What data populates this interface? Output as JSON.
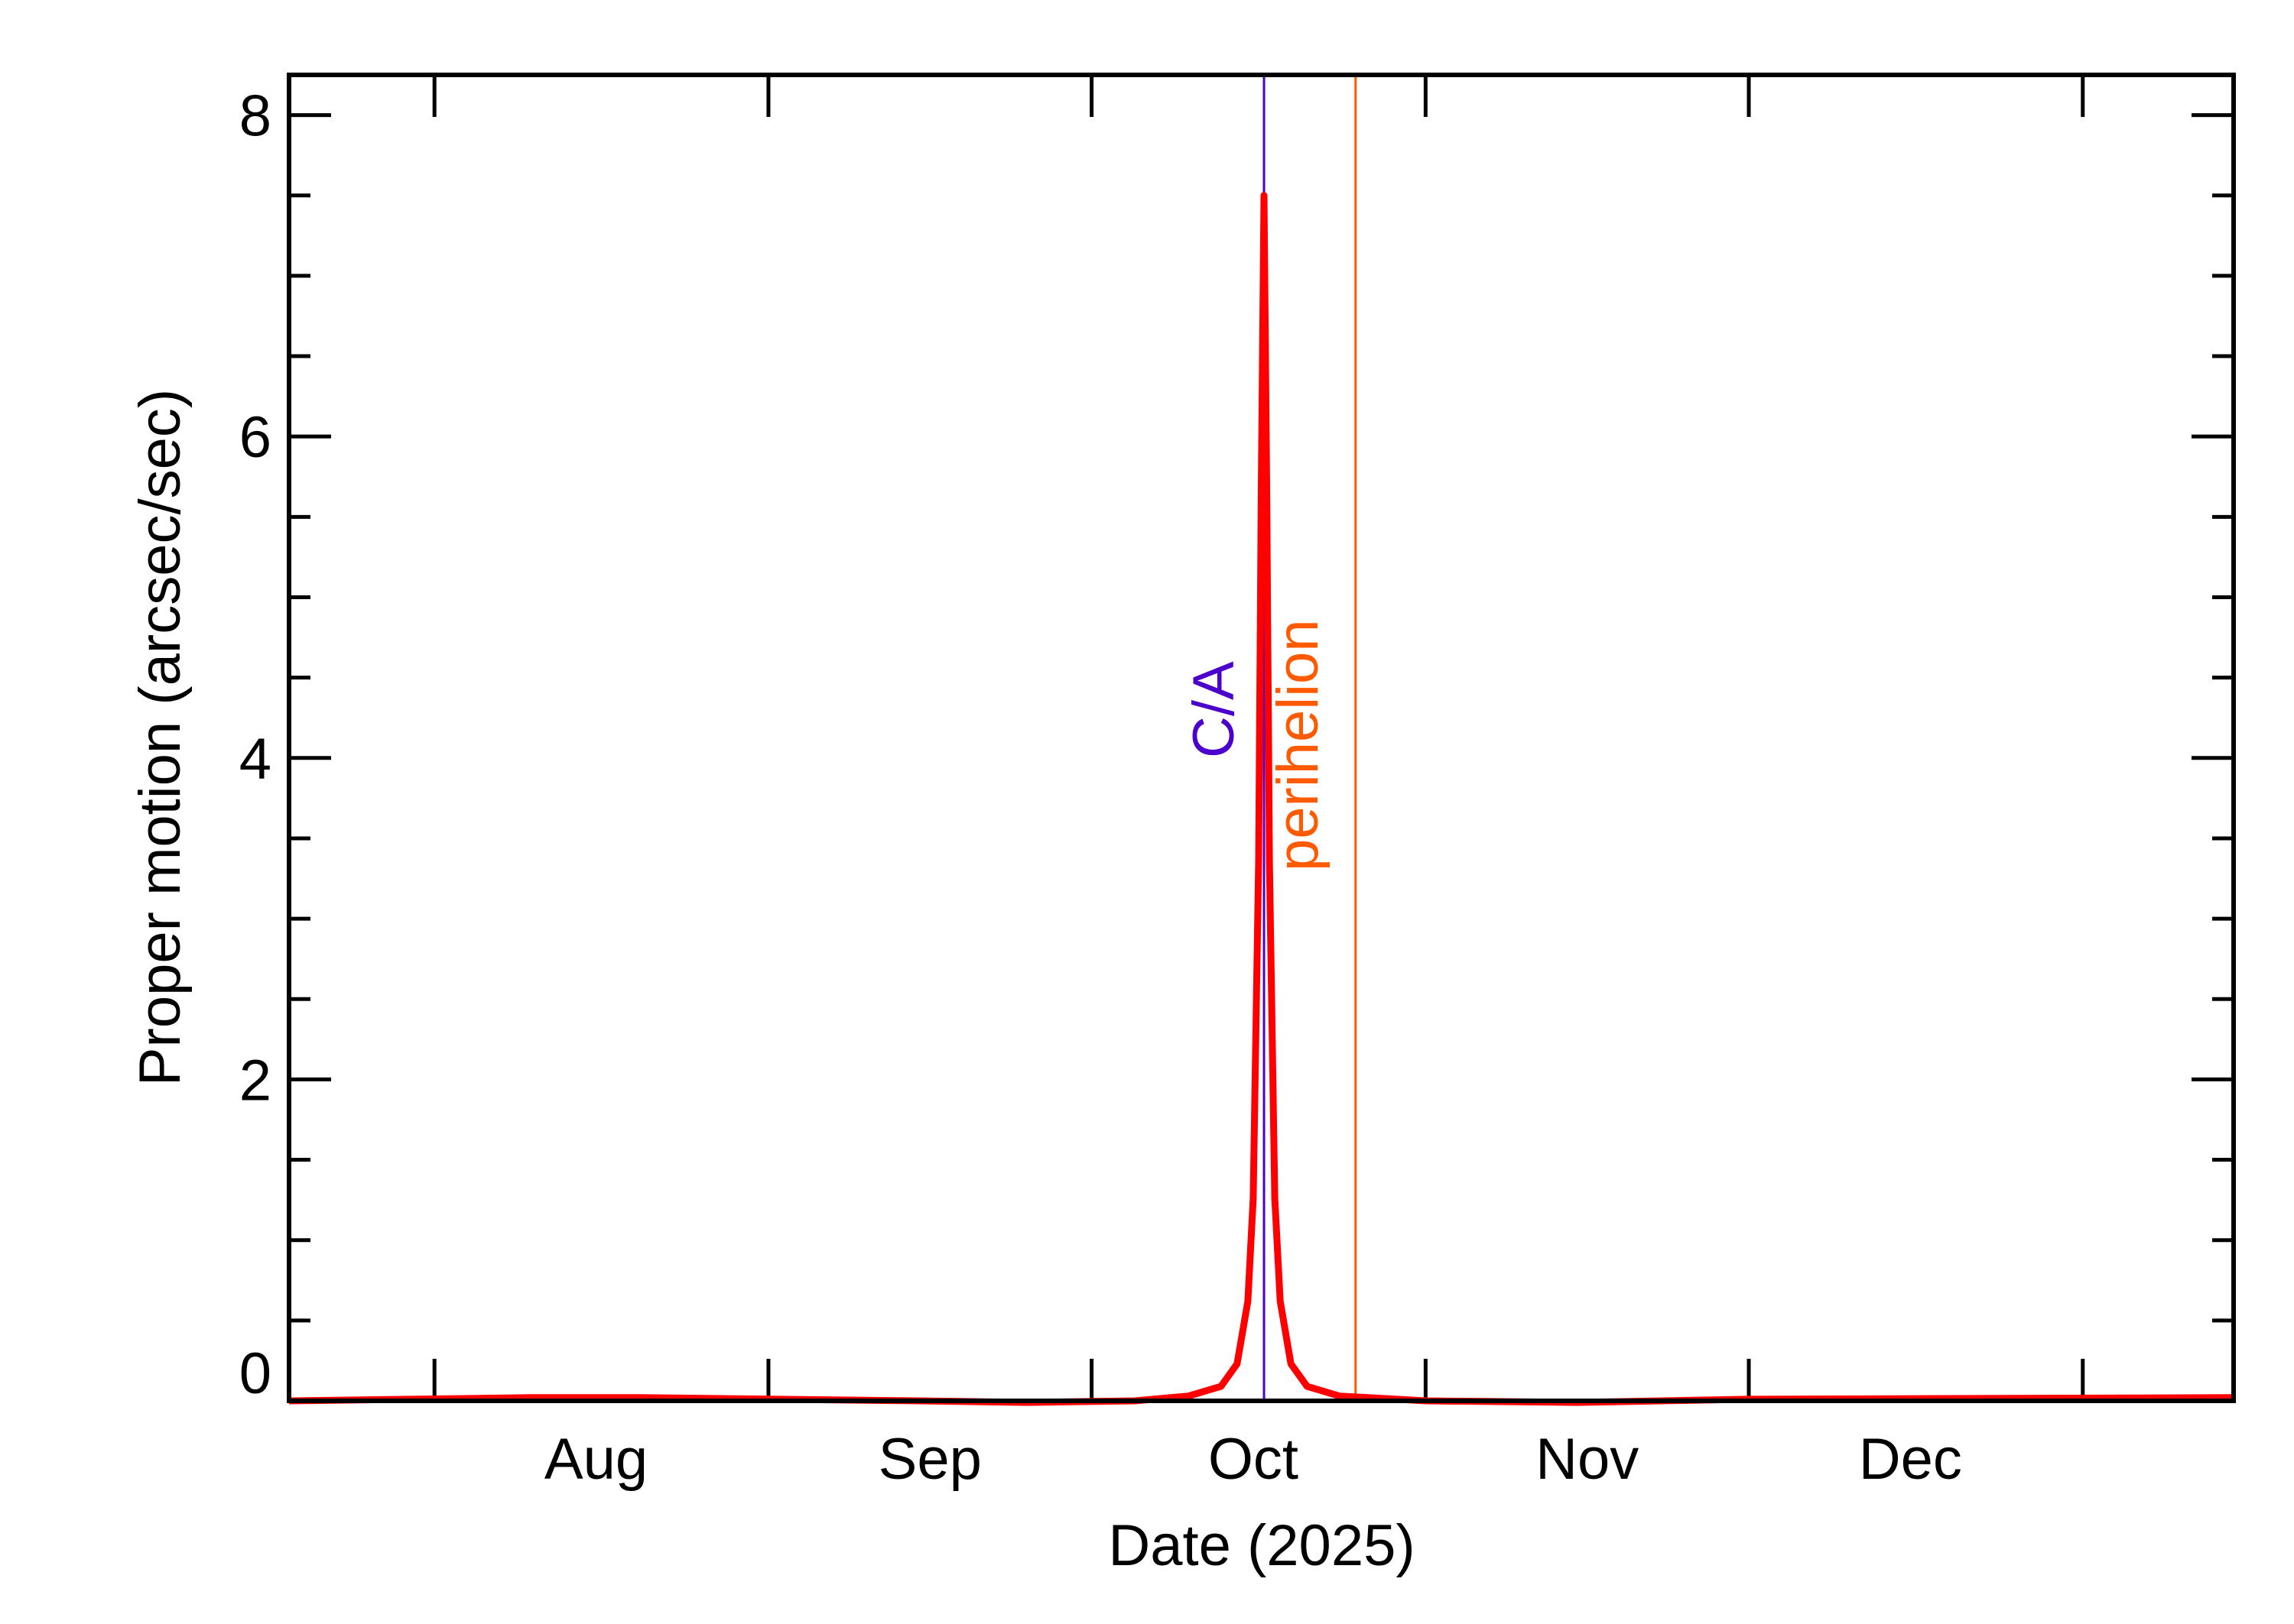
{
  "chart_data": {
    "type": "line",
    "title": "",
    "xlabel": "Date (2025)",
    "ylabel": "Proper motion (arcsec/sec)",
    "xlim": [
      "2025-07-18T12:00",
      "2026-01-15T00:00"
    ],
    "ylim": [
      0,
      8.25
    ],
    "x_ticks": [
      {
        "date": "2025-08-01",
        "label": ""
      },
      {
        "date": "2025-09-01",
        "label": ""
      },
      {
        "date": "2025-10-01",
        "label": ""
      },
      {
        "date": "2025-11-01",
        "label": ""
      },
      {
        "date": "2025-12-01",
        "label": ""
      },
      {
        "date": "2026-01-01",
        "label": ""
      }
    ],
    "x_tick_labels": [
      {
        "date": "2025-08-16",
        "label": "Aug"
      },
      {
        "date": "2025-09-16",
        "label": "Sep"
      },
      {
        "date": "2025-10-16",
        "label": "Oct"
      },
      {
        "date": "2025-11-16",
        "label": "Nov"
      },
      {
        "date": "2025-12-16",
        "label": "Dec"
      }
    ],
    "y_major_ticks": [
      0,
      2,
      4,
      6,
      8
    ],
    "y_minor_step": 0.5,
    "grid": false,
    "series": [
      {
        "color": "#ff0000",
        "points": [
          [
            "2025-07-18T12:00",
            0.0
          ],
          [
            "2025-08-10T00:00",
            0.02
          ],
          [
            "2025-08-20T00:00",
            0.02
          ],
          [
            "2025-09-15T00:00",
            0.0
          ],
          [
            "2025-09-25T00:00",
            -0.01
          ],
          [
            "2025-10-05T00:00",
            0.0
          ],
          [
            "2025-10-10T00:00",
            0.03
          ],
          [
            "2025-10-13T00:00",
            0.09
          ],
          [
            "2025-10-14T12:00",
            0.23
          ],
          [
            "2025-10-15T12:00",
            0.62
          ],
          [
            "2025-10-16T00:00",
            1.26
          ],
          [
            "2025-10-16T12:00",
            3.36
          ],
          [
            "2025-10-16T18:00",
            5.7
          ],
          [
            "2025-10-17T00:00",
            7.5
          ],
          [
            "2025-10-17T06:00",
            5.7
          ],
          [
            "2025-10-17T12:00",
            3.36
          ],
          [
            "2025-10-18T00:00",
            1.26
          ],
          [
            "2025-10-18T12:00",
            0.62
          ],
          [
            "2025-10-19T12:00",
            0.23
          ],
          [
            "2025-10-21T00:00",
            0.09
          ],
          [
            "2025-10-24T00:00",
            0.03
          ],
          [
            "2025-11-01T00:00",
            0.0
          ],
          [
            "2025-11-15T00:00",
            -0.01
          ],
          [
            "2025-12-01T00:00",
            0.01
          ],
          [
            "2026-01-15T00:00",
            0.02
          ]
        ]
      }
    ],
    "annotations": [
      {
        "label": "C/A",
        "date": "2025-10-17T00:00",
        "color": "#4b00cc"
      },
      {
        "label": "perihelion",
        "date": "2025-10-25T12:00",
        "color": "#ff5a00"
      }
    ]
  }
}
